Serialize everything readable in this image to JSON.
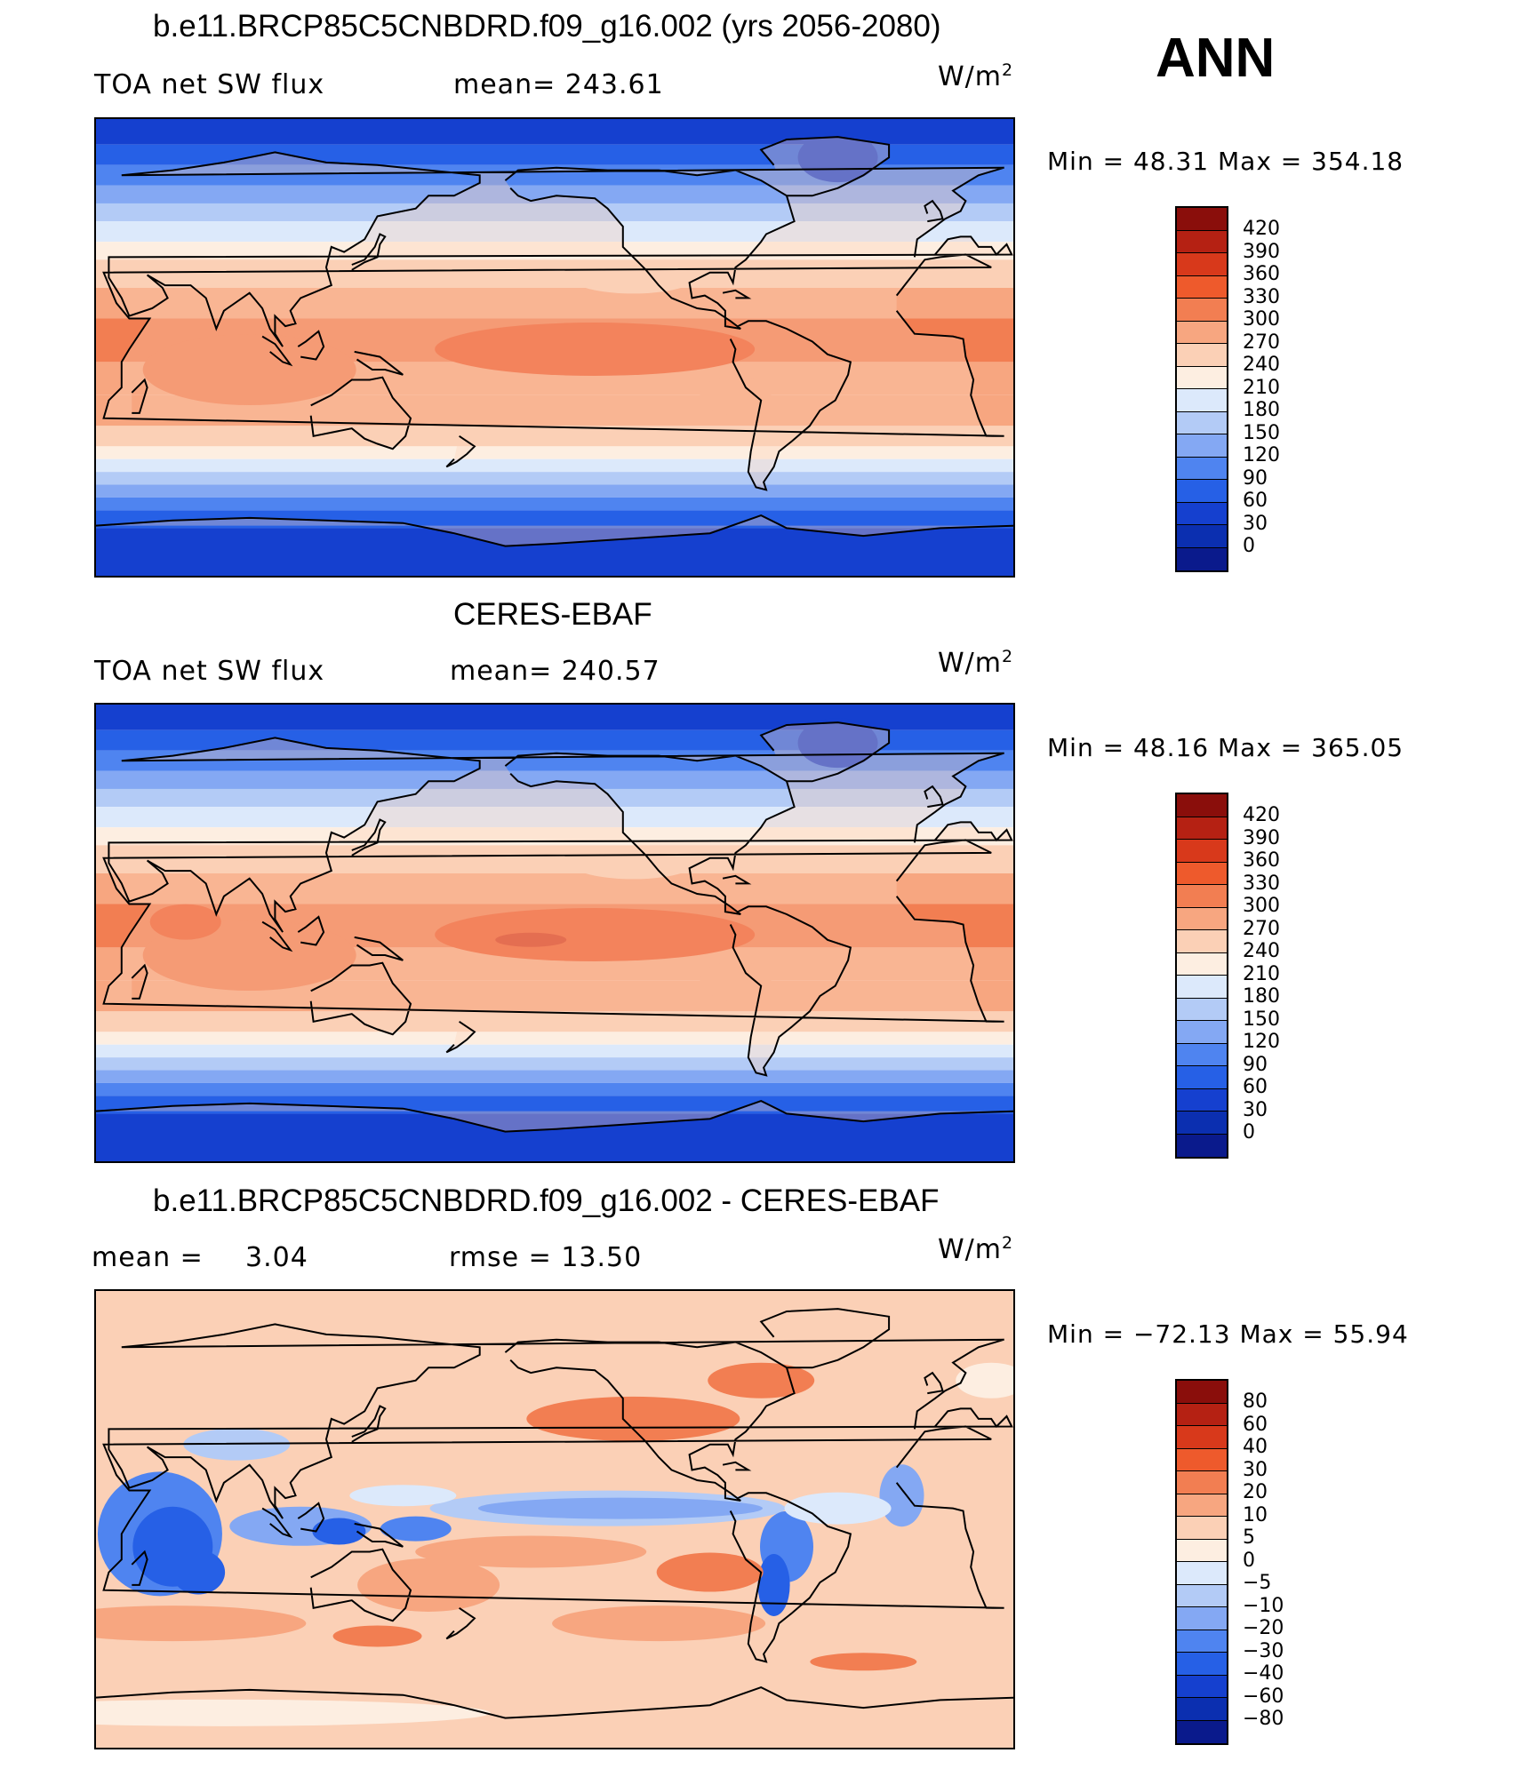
{
  "season": "ANN",
  "colors": {
    "abs_scale": [
      "#0a1a8c",
      "#0b2fb0",
      "#1540cf",
      "#2660e6",
      "#4f84f0",
      "#84a8f3",
      "#b3cbf6",
      "#dce9fb",
      "#fdeee1",
      "#fbd0b6",
      "#f7a680",
      "#f27e52",
      "#ee5a2c",
      "#d8391b",
      "#b52113",
      "#8a0e0b"
    ],
    "diff_scale": [
      "#0a1a8c",
      "#0b2fb0",
      "#1540cf",
      "#2660e6",
      "#4f84f0",
      "#84a8f3",
      "#b3cbf6",
      "#dce9fb",
      "#fdeee1",
      "#fbd0b6",
      "#f7a680",
      "#f27e52",
      "#ee5a2c",
      "#d8391b",
      "#b52113",
      "#8a0e0b"
    ],
    "land_outline": "#000000"
  },
  "panels": [
    {
      "id": "model",
      "title": "b.e11.BRCP85C5CNBDRD.f09_g16.002 (yrs 2056-2080)",
      "variable": "TOA net SW flux",
      "stat1": "mean=  243.61",
      "stat2": "",
      "units": "W/m",
      "units_sup": "2",
      "minmax": "Min  =   48.31  Max  =  354.18",
      "levels": [
        "420",
        "390",
        "360",
        "330",
        "300",
        "270",
        "240",
        "210",
        "180",
        "150",
        "120",
        "90",
        "60",
        "30",
        "0"
      ]
    },
    {
      "id": "obs",
      "title": "CERES-EBAF",
      "variable": "TOA net SW flux",
      "stat1": "mean=  240.57",
      "stat2": "",
      "units": "W/m",
      "units_sup": "2",
      "minmax": "Min  =   48.16  Max  =  365.05",
      "levels": [
        "420",
        "390",
        "360",
        "330",
        "300",
        "270",
        "240",
        "210",
        "180",
        "150",
        "120",
        "90",
        "60",
        "30",
        "0"
      ]
    },
    {
      "id": "diff",
      "title": "b.e11.BRCP85C5CNBDRD.f09_g16.002 - CERES-EBAF",
      "variable": "mean  =",
      "stat1": "3.04",
      "stat2": "rmse  =     13.50",
      "units": "W/m",
      "units_sup": "2",
      "minmax": "Min  = −72.13  Max  =    55.94",
      "levels": [
        "80",
        "60",
        "40",
        "30",
        "20",
        "10",
        "5",
        "0",
        "−5",
        "−10",
        "−20",
        "−30",
        "−40",
        "−60",
        "−80"
      ]
    }
  ]
}
